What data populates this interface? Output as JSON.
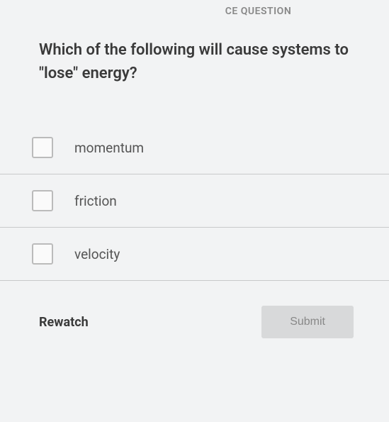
{
  "question": {
    "type_label": "CE QUESTION",
    "text": "Which of the following will cause systems to \"lose\" energy?"
  },
  "options": [
    {
      "label": "momentum"
    },
    {
      "label": "friction"
    },
    {
      "label": "velocity"
    }
  ],
  "footer": {
    "rewatch_label": "Rewatch",
    "submit_label": "Submit"
  }
}
